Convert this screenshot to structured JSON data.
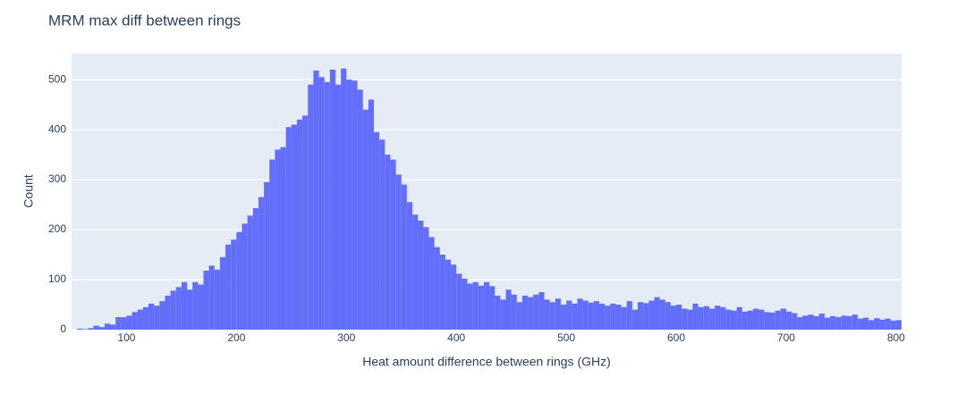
{
  "chart_data": {
    "type": "histogram",
    "title": "MRM max diff between rings",
    "x_label": "Heat amount difference between rings (GHz)",
    "y_label": "Count",
    "color": "#636efa",
    "grid": true,
    "bins": [
      50,
      55,
      60,
      65,
      70,
      75,
      80,
      85,
      90,
      95,
      100,
      105,
      110,
      115,
      120,
      125,
      130,
      135,
      140,
      145,
      150,
      155,
      160,
      165,
      170,
      175,
      180,
      185,
      190,
      195,
      200,
      205,
      210,
      215,
      220,
      225,
      230,
      235,
      240,
      245,
      250,
      255,
      260,
      265,
      270,
      275,
      280,
      285,
      290,
      295,
      300,
      305,
      310,
      315,
      320,
      325,
      330,
      335,
      340,
      345,
      350,
      355,
      360,
      365,
      370,
      375,
      380,
      385,
      390,
      395,
      400,
      405,
      410,
      415,
      420,
      425,
      430,
      435,
      440,
      445,
      450,
      455,
      460,
      465,
      470,
      475,
      480,
      485,
      490,
      495,
      500,
      505,
      510,
      515,
      520,
      525,
      530,
      535,
      540,
      545,
      550,
      555,
      560,
      565,
      570,
      575,
      580,
      585,
      590,
      595,
      600,
      605,
      610,
      615,
      620,
      625,
      630,
      635,
      640,
      645,
      650,
      655,
      660,
      665,
      670,
      675,
      680,
      685,
      690,
      695,
      700,
      705,
      710,
      715,
      720,
      725,
      730,
      735,
      740,
      745,
      750,
      755,
      760,
      765,
      770,
      775,
      780,
      785,
      790,
      795,
      800,
      805
    ],
    "values": [
      0,
      2,
      1,
      3,
      8,
      5,
      12,
      10,
      25,
      25,
      28,
      35,
      40,
      45,
      52,
      48,
      57,
      68,
      78,
      85,
      95,
      80,
      95,
      90,
      118,
      128,
      120,
      145,
      170,
      180,
      195,
      212,
      228,
      243,
      265,
      295,
      340,
      360,
      365,
      405,
      410,
      420,
      428,
      490,
      518,
      505,
      495,
      520,
      490,
      522,
      500,
      498,
      480,
      440,
      460,
      395,
      380,
      350,
      340,
      310,
      290,
      255,
      230,
      218,
      205,
      185,
      165,
      150,
      140,
      130,
      112,
      102,
      92,
      95,
      88,
      95,
      87,
      68,
      60,
      80,
      70,
      55,
      68,
      65,
      70,
      75,
      60,
      55,
      62,
      50,
      58,
      52,
      62,
      58,
      54,
      57,
      52,
      48,
      52,
      50,
      45,
      57,
      40,
      55,
      53,
      58,
      65,
      60,
      55,
      48,
      50,
      42,
      40,
      52,
      45,
      47,
      42,
      48,
      45,
      40,
      38,
      45,
      36,
      38,
      42,
      40,
      35,
      34,
      38,
      42,
      36,
      33,
      25,
      28,
      30,
      27,
      32,
      24,
      27,
      25,
      28,
      27,
      30,
      22,
      24,
      19,
      23,
      20,
      22,
      18,
      19
    ],
    "xlim": [
      50,
      805
    ],
    "ylim": [
      0,
      552
    ],
    "xticks": [
      100,
      200,
      300,
      400,
      500,
      600,
      700,
      800
    ],
    "yticks": [
      0,
      100,
      200,
      300,
      400,
      500
    ]
  }
}
